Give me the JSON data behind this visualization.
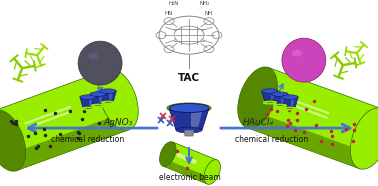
{
  "bg_color": "#ffffff",
  "fig_width": 3.78,
  "fig_height": 1.86,
  "dpi": 100,
  "tube_green": "#99ee00",
  "tube_dark_green": "#558800",
  "tube_edge": "#336600",
  "tube_shadow": "#446600",
  "sphere_ag_color": "#505060",
  "sphere_ag_hi": "#7070a0",
  "sphere_au_color": "#cc44bb",
  "sphere_au_hi": "#ee88ee",
  "cup_blue_dark": "#223399",
  "cup_blue_mid": "#3355cc",
  "cup_blue_light": "#6688ee",
  "cup_rim_green": "#99ee00",
  "arrow_color": "#4477cc",
  "dot_dark": "#222222",
  "dot_red": "#bb2244",
  "text_color": "#111111",
  "mol_color": "#888888",
  "cross_red": "#cc3333",
  "cross_blue": "#3355cc",
  "tac_label": "TAC",
  "agno3_label": "AgNO₃",
  "haucl4_label": "HAuCl₄",
  "chem_red": "chemical reduction",
  "ebeam": "electronic beam",
  "hn_label": "HN",
  "nh_label": "NH",
  "h2n_label": "H₂N",
  "nh2_label": "NH₂"
}
